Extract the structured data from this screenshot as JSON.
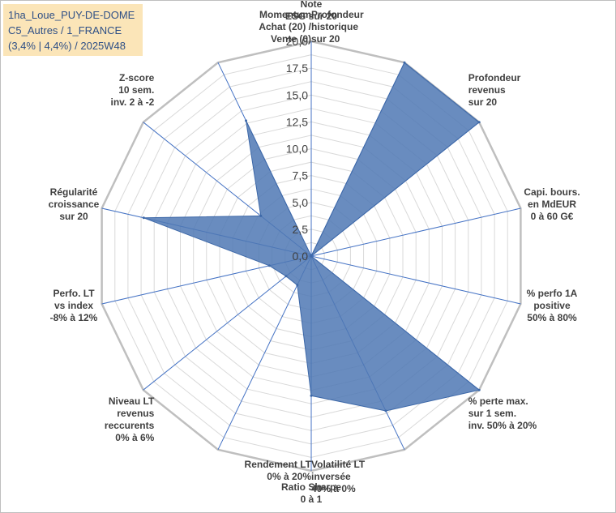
{
  "info": {
    "line1": "1ha_Loue_PUY-DE-DOME",
    "line2": "C5_Autres / 1_FRANCE",
    "line3": "(3,4% | 4,4%) / 2025W48"
  },
  "colors": {
    "fill": "#4f78b4",
    "stroke": "#3d68a8",
    "grid": "#d9d9d9",
    "outer": "#bfbfbf",
    "spoke": "#4472c4",
    "text": "#404040"
  },
  "chart_data": {
    "type": "radar",
    "title": "",
    "axes": [
      [
        "Note",
        "ESG sur 20"
      ],
      [
        "Profondeur",
        "historique",
        "sur 20"
      ],
      [
        "Profondeur",
        "revenus",
        "sur 20"
      ],
      [
        "Capi. bours.",
        "en MdEUR",
        "0 à 60 G€"
      ],
      [
        "% perfo 1A",
        "positive",
        "50% à 80%"
      ],
      [
        "% perte max.",
        "sur 1 sem.",
        "inv. 50% à 20%"
      ],
      [
        "Volatilité LT",
        "inversée",
        "40% à 0%"
      ],
      [
        "Ratio Sharpe",
        "0 à 1"
      ],
      [
        "Rendement LT",
        "0% à 20%"
      ],
      [
        "Niveau LT",
        "revenus",
        "reccurents",
        "0% à 6%"
      ],
      [
        "Perfo. LT",
        "vs index",
        "-8% à 12%"
      ],
      [
        "Régularité",
        "croissance",
        "sur 20"
      ],
      [
        "Z-score",
        "10 sem.",
        "inv. 2 à -2"
      ],
      [
        "Momentum",
        "Achat (20) /",
        "Vente (0)"
      ]
    ],
    "values": [
      0,
      20,
      20,
      0,
      0,
      20,
      16,
      13,
      3,
      3,
      4,
      16,
      6,
      14
    ],
    "ylim": [
      0,
      20
    ],
    "ticks": [
      "0,0",
      "2,5",
      "5,0",
      "7,5",
      "10,0",
      "12,5",
      "15,0",
      "17,5",
      "20,0"
    ],
    "tick_values": [
      0,
      2.5,
      5,
      7.5,
      10,
      12.5,
      15,
      17.5,
      20
    ]
  }
}
